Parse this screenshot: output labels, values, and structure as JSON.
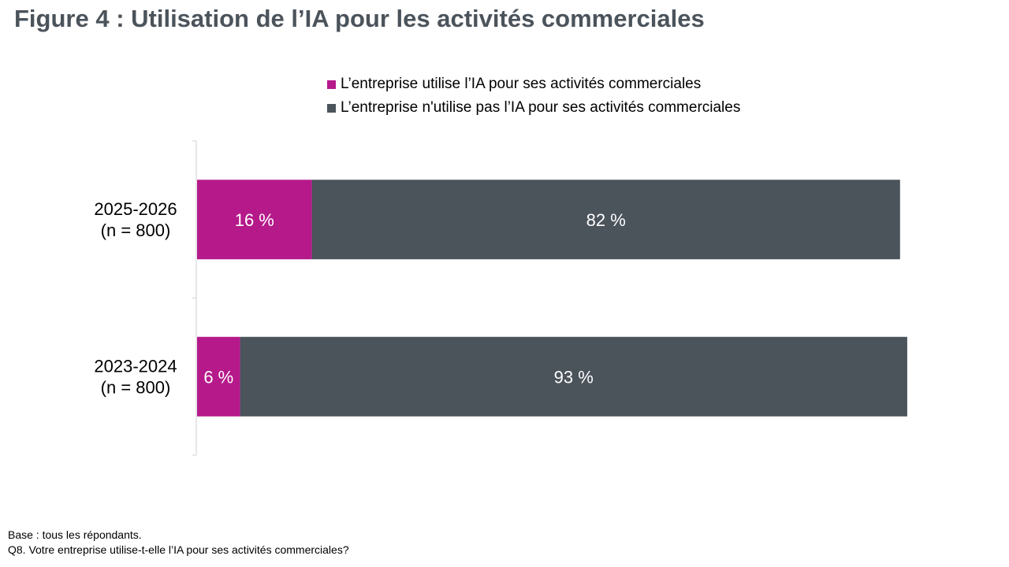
{
  "title": "Figure 4 : Utilisation de l’IA pour les activités commerciales",
  "colors": {
    "uses": "#b5198a",
    "not_uses": "#4b535b",
    "axis": "#d0d0d0",
    "title": "#4b535b"
  },
  "chart_data": {
    "type": "bar",
    "orientation": "horizontal",
    "stacked": true,
    "categories": [
      {
        "line1": "2025-2026",
        "line2": "(n = 800)"
      },
      {
        "line1": "2023-2024",
        "line2": "(n = 800)"
      }
    ],
    "series": [
      {
        "name": "L’entreprise utilise l’IA pour ses activités commerciales",
        "color": "#b5198a",
        "values": [
          16,
          6
        ],
        "labels": [
          "16 %",
          "6 %"
        ]
      },
      {
        "name": "L’entreprise n'utilise pas l’IA pour ses activités commerciales",
        "color": "#4b535b",
        "values": [
          82,
          93
        ],
        "labels": [
          "82 %",
          "93 %"
        ]
      }
    ],
    "xlim": [
      0,
      100
    ],
    "legend_position": "top",
    "grid": false
  },
  "footnotes": [
    "Base : tous les répondants.",
    "Q8. Votre entreprise utilise-t-elle l’IA pour ses activités commerciales?"
  ]
}
